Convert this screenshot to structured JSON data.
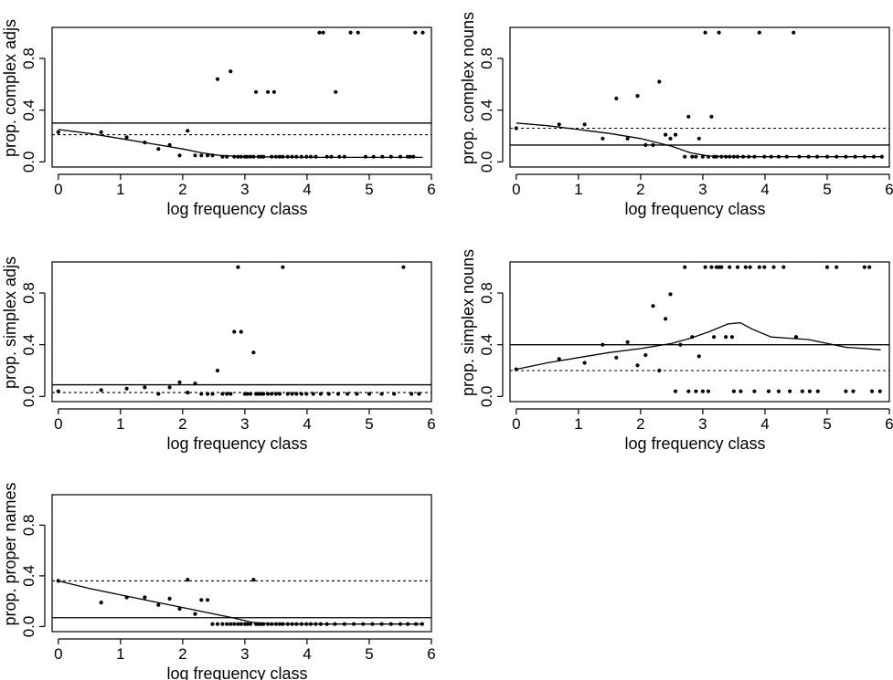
{
  "chart_data": [
    {
      "type": "scatter",
      "ylabel": "prop. complex adjs",
      "xlabel": "log frequency class",
      "xlim": [
        -0.1,
        6
      ],
      "ylim": [
        -0.04,
        1.04
      ],
      "xticks": [
        0,
        1,
        2,
        3,
        4,
        5,
        6
      ],
      "yticks": [
        0.0,
        0.4,
        0.8
      ],
      "ytick_labels": [
        "0.0",
        "0.4",
        "0.8"
      ],
      "hline_solid": 0.3,
      "hline_dashed": 0.21,
      "points": [
        [
          0,
          0.23
        ],
        [
          0.69,
          0.23
        ],
        [
          1.1,
          0.19
        ],
        [
          1.39,
          0.15
        ],
        [
          1.61,
          0.1
        ],
        [
          1.79,
          0.13
        ],
        [
          1.95,
          0.05
        ],
        [
          2.08,
          0.24
        ],
        [
          2.2,
          0.05
        ],
        [
          2.3,
          0.05
        ],
        [
          2.4,
          0.05
        ],
        [
          2.48,
          0.05
        ],
        [
          2.56,
          0.64
        ],
        [
          2.64,
          0.04
        ],
        [
          2.71,
          0.04
        ],
        [
          2.77,
          0.7
        ],
        [
          2.83,
          0.04
        ],
        [
          2.89,
          0.04
        ],
        [
          2.94,
          0.04
        ],
        [
          3.0,
          0.04
        ],
        [
          3.04,
          0.04
        ],
        [
          3.09,
          0.04
        ],
        [
          3.14,
          0.04
        ],
        [
          3.18,
          0.54
        ],
        [
          3.22,
          0.04
        ],
        [
          3.26,
          0.04
        ],
        [
          3.3,
          0.04
        ],
        [
          3.37,
          0.54
        ],
        [
          3.43,
          0.04
        ],
        [
          3.47,
          0.54
        ],
        [
          3.5,
          0.04
        ],
        [
          3.56,
          0.04
        ],
        [
          3.61,
          0.04
        ],
        [
          3.69,
          0.04
        ],
        [
          3.76,
          0.04
        ],
        [
          3.83,
          0.04
        ],
        [
          3.91,
          0.04
        ],
        [
          3.99,
          0.04
        ],
        [
          4.06,
          0.04
        ],
        [
          4.14,
          0.04
        ],
        [
          4.2,
          1.0
        ],
        [
          4.26,
          1.0
        ],
        [
          4.32,
          0.04
        ],
        [
          4.39,
          0.04
        ],
        [
          4.46,
          0.54
        ],
        [
          4.52,
          0.04
        ],
        [
          4.6,
          0.04
        ],
        [
          4.7,
          1.0
        ],
        [
          4.82,
          1.0
        ],
        [
          4.94,
          0.04
        ],
        [
          5.07,
          0.04
        ],
        [
          5.21,
          0.04
        ],
        [
          5.35,
          0.04
        ],
        [
          5.5,
          0.04
        ],
        [
          5.62,
          0.04
        ],
        [
          5.66,
          0.04
        ],
        [
          5.71,
          0.04
        ],
        [
          5.74,
          1.0
        ],
        [
          5.86,
          1.0
        ]
      ],
      "smooth": [
        [
          0,
          0.25
        ],
        [
          0.5,
          0.22
        ],
        [
          1.0,
          0.18
        ],
        [
          1.5,
          0.14
        ],
        [
          2.0,
          0.1
        ],
        [
          2.3,
          0.07
        ],
        [
          2.6,
          0.05
        ],
        [
          3.0,
          0.04
        ],
        [
          4.0,
          0.035
        ],
        [
          5.0,
          0.035
        ],
        [
          5.86,
          0.035
        ]
      ]
    },
    {
      "type": "scatter",
      "ylabel": "prop. complex nouns",
      "xlabel": "log frequency class",
      "xlim": [
        -0.1,
        6
      ],
      "ylim": [
        -0.04,
        1.04
      ],
      "xticks": [
        0,
        1,
        2,
        3,
        4,
        5,
        6
      ],
      "yticks": [
        0.0,
        0.4,
        0.8
      ],
      "ytick_labels": [
        "0.0",
        "0.4",
        "0.8"
      ],
      "hline_solid": 0.13,
      "hline_dashed": 0.26,
      "points": [
        [
          0,
          0.26
        ],
        [
          0.69,
          0.29
        ],
        [
          1.1,
          0.29
        ],
        [
          1.39,
          0.18
        ],
        [
          1.61,
          0.49
        ],
        [
          1.79,
          0.18
        ],
        [
          1.95,
          0.51
        ],
        [
          2.08,
          0.13
        ],
        [
          2.2,
          0.13
        ],
        [
          2.3,
          0.62
        ],
        [
          2.4,
          0.21
        ],
        [
          2.48,
          0.18
        ],
        [
          2.56,
          0.21
        ],
        [
          2.71,
          0.04
        ],
        [
          2.77,
          0.35
        ],
        [
          2.83,
          0.04
        ],
        [
          2.89,
          0.04
        ],
        [
          2.94,
          0.18
        ],
        [
          3.0,
          0.04
        ],
        [
          3.04,
          1.0
        ],
        [
          3.09,
          0.04
        ],
        [
          3.14,
          0.35
        ],
        [
          3.18,
          0.04
        ],
        [
          3.22,
          0.04
        ],
        [
          3.26,
          1.0
        ],
        [
          3.3,
          0.04
        ],
        [
          3.37,
          0.04
        ],
        [
          3.43,
          0.04
        ],
        [
          3.5,
          0.04
        ],
        [
          3.56,
          0.04
        ],
        [
          3.65,
          0.04
        ],
        [
          3.74,
          0.04
        ],
        [
          3.83,
          0.04
        ],
        [
          3.91,
          1.0
        ],
        [
          3.99,
          0.04
        ],
        [
          4.1,
          0.04
        ],
        [
          4.22,
          0.04
        ],
        [
          4.35,
          0.04
        ],
        [
          4.46,
          1.0
        ],
        [
          4.55,
          0.04
        ],
        [
          4.7,
          0.04
        ],
        [
          4.84,
          0.04
        ],
        [
          5.0,
          0.04
        ],
        [
          5.15,
          0.04
        ],
        [
          5.3,
          0.04
        ],
        [
          5.45,
          0.04
        ],
        [
          5.6,
          0.04
        ],
        [
          5.75,
          0.04
        ],
        [
          5.88,
          0.04
        ]
      ],
      "smooth": [
        [
          0,
          0.3
        ],
        [
          0.5,
          0.28
        ],
        [
          1.0,
          0.25
        ],
        [
          1.5,
          0.22
        ],
        [
          2.0,
          0.18
        ],
        [
          2.5,
          0.12
        ],
        [
          2.8,
          0.07
        ],
        [
          3.1,
          0.045
        ],
        [
          3.5,
          0.04
        ],
        [
          4.5,
          0.04
        ],
        [
          5.88,
          0.04
        ]
      ]
    },
    {
      "type": "scatter",
      "ylabel": "prop. simplex adjs",
      "xlabel": "log frequency class",
      "xlim": [
        -0.1,
        6
      ],
      "ylim": [
        -0.04,
        1.04
      ],
      "xticks": [
        0,
        1,
        2,
        3,
        4,
        5,
        6
      ],
      "yticks": [
        0.0,
        0.4,
        0.8
      ],
      "ytick_labels": [
        "0.0",
        "0.4",
        "0.8"
      ],
      "hline_solid": 0.09,
      "hline_dashed": 0.03,
      "points": [
        [
          0,
          0.04
        ],
        [
          0.69,
          0.05
        ],
        [
          1.1,
          0.06
        ],
        [
          1.39,
          0.07
        ],
        [
          1.61,
          0.02
        ],
        [
          1.79,
          0.07
        ],
        [
          1.95,
          0.11
        ],
        [
          2.08,
          0.03
        ],
        [
          2.2,
          0.1
        ],
        [
          2.3,
          0.02
        ],
        [
          2.4,
          0.02
        ],
        [
          2.48,
          0.02
        ],
        [
          2.56,
          0.2
        ],
        [
          2.64,
          0.02
        ],
        [
          2.71,
          0.02
        ],
        [
          2.77,
          0.02
        ],
        [
          2.83,
          0.5
        ],
        [
          2.89,
          1.0
        ],
        [
          2.94,
          0.5
        ],
        [
          3.0,
          0.02
        ],
        [
          3.04,
          0.02
        ],
        [
          3.09,
          0.02
        ],
        [
          3.14,
          0.34
        ],
        [
          3.18,
          0.02
        ],
        [
          3.22,
          0.02
        ],
        [
          3.26,
          0.02
        ],
        [
          3.3,
          0.02
        ],
        [
          3.37,
          0.02
        ],
        [
          3.43,
          0.02
        ],
        [
          3.5,
          0.02
        ],
        [
          3.56,
          0.02
        ],
        [
          3.61,
          1.0
        ],
        [
          3.69,
          0.02
        ],
        [
          3.76,
          0.02
        ],
        [
          3.83,
          0.02
        ],
        [
          3.91,
          0.02
        ],
        [
          3.99,
          0.02
        ],
        [
          4.1,
          0.02
        ],
        [
          4.22,
          0.02
        ],
        [
          4.35,
          0.02
        ],
        [
          4.5,
          0.02
        ],
        [
          4.65,
          0.02
        ],
        [
          4.8,
          0.02
        ],
        [
          5.0,
          0.02
        ],
        [
          5.2,
          0.02
        ],
        [
          5.4,
          0.02
        ],
        [
          5.55,
          1.0
        ],
        [
          5.68,
          0.02
        ],
        [
          5.8,
          0.02
        ]
      ],
      "smooth": []
    },
    {
      "type": "scatter",
      "ylabel": "prop. simplex nouns",
      "xlabel": "log frequency class",
      "xlim": [
        -0.1,
        6
      ],
      "ylim": [
        -0.04,
        1.04
      ],
      "xticks": [
        0,
        1,
        2,
        3,
        4,
        5,
        6
      ],
      "yticks": [
        0.0,
        0.4,
        0.8
      ],
      "ytick_labels": [
        "0.0",
        "0.4",
        "0.8"
      ],
      "hline_solid": 0.4,
      "hline_dashed": 0.2,
      "points": [
        [
          0,
          0.21
        ],
        [
          0.69,
          0.29
        ],
        [
          1.1,
          0.26
        ],
        [
          1.39,
          0.4
        ],
        [
          1.61,
          0.3
        ],
        [
          1.79,
          0.42
        ],
        [
          1.95,
          0.24
        ],
        [
          2.08,
          0.32
        ],
        [
          2.2,
          0.7
        ],
        [
          2.3,
          0.2
        ],
        [
          2.4,
          0.6
        ],
        [
          2.48,
          0.79
        ],
        [
          2.56,
          0.04
        ],
        [
          2.64,
          0.4
        ],
        [
          2.71,
          1.0
        ],
        [
          2.77,
          0.04
        ],
        [
          2.83,
          0.46
        ],
        [
          2.89,
          0.04
        ],
        [
          2.94,
          0.31
        ],
        [
          3.0,
          0.04
        ],
        [
          3.04,
          1.0
        ],
        [
          3.09,
          0.04
        ],
        [
          3.14,
          1.0
        ],
        [
          3.18,
          0.46
        ],
        [
          3.22,
          1.0
        ],
        [
          3.26,
          1.0
        ],
        [
          3.3,
          1.0
        ],
        [
          3.37,
          0.46
        ],
        [
          3.43,
          1.0
        ],
        [
          3.47,
          0.46
        ],
        [
          3.5,
          0.04
        ],
        [
          3.56,
          1.0
        ],
        [
          3.61,
          0.04
        ],
        [
          3.69,
          1.0
        ],
        [
          3.76,
          1.0
        ],
        [
          3.83,
          0.04
        ],
        [
          3.91,
          1.0
        ],
        [
          3.99,
          1.0
        ],
        [
          4.06,
          0.04
        ],
        [
          4.14,
          1.0
        ],
        [
          4.22,
          0.04
        ],
        [
          4.3,
          1.0
        ],
        [
          4.4,
          0.04
        ],
        [
          4.5,
          0.46
        ],
        [
          4.6,
          0.04
        ],
        [
          4.72,
          0.04
        ],
        [
          4.85,
          0.04
        ],
        [
          5.0,
          1.0
        ],
        [
          5.15,
          1.0
        ],
        [
          5.3,
          0.04
        ],
        [
          5.42,
          0.04
        ],
        [
          5.6,
          1.0
        ],
        [
          5.68,
          1.0
        ],
        [
          5.72,
          0.04
        ],
        [
          5.85,
          0.04
        ]
      ],
      "smooth": [
        [
          0,
          0.21
        ],
        [
          0.5,
          0.26
        ],
        [
          1.0,
          0.3
        ],
        [
          1.5,
          0.34
        ],
        [
          2.0,
          0.37
        ],
        [
          2.5,
          0.41
        ],
        [
          2.8,
          0.45
        ],
        [
          3.1,
          0.5
        ],
        [
          3.4,
          0.56
        ],
        [
          3.6,
          0.57
        ],
        [
          3.8,
          0.52
        ],
        [
          4.1,
          0.46
        ],
        [
          4.4,
          0.45
        ],
        [
          4.7,
          0.44
        ],
        [
          5.0,
          0.41
        ],
        [
          5.3,
          0.38
        ],
        [
          5.6,
          0.37
        ],
        [
          5.86,
          0.36
        ]
      ]
    },
    {
      "type": "scatter",
      "ylabel": "prop. proper names",
      "xlabel": "log frequency class",
      "xlim": [
        -0.1,
        6
      ],
      "ylim": [
        -0.04,
        1.04
      ],
      "xticks": [
        0,
        1,
        2,
        3,
        4,
        5,
        6
      ],
      "yticks": [
        0.0,
        0.4,
        0.8
      ],
      "ytick_labels": [
        "0.0",
        "0.4",
        "0.8"
      ],
      "hline_solid": 0.07,
      "hline_dashed": 0.36,
      "points": [
        [
          0,
          0.36
        ],
        [
          0.69,
          0.19
        ],
        [
          1.1,
          0.23
        ],
        [
          1.39,
          0.23
        ],
        [
          1.61,
          0.17
        ],
        [
          1.79,
          0.22
        ],
        [
          1.95,
          0.14
        ],
        [
          2.08,
          0.37
        ],
        [
          2.2,
          0.1
        ],
        [
          2.3,
          0.21
        ],
        [
          2.4,
          0.21
        ],
        [
          2.48,
          0.02
        ],
        [
          2.56,
          0.02
        ],
        [
          2.64,
          0.02
        ],
        [
          2.71,
          0.02
        ],
        [
          2.77,
          0.02
        ],
        [
          2.83,
          0.02
        ],
        [
          2.89,
          0.02
        ],
        [
          2.94,
          0.02
        ],
        [
          3.0,
          0.02
        ],
        [
          3.04,
          0.02
        ],
        [
          3.09,
          0.02
        ],
        [
          3.14,
          0.37
        ],
        [
          3.18,
          0.02
        ],
        [
          3.22,
          0.02
        ],
        [
          3.26,
          0.02
        ],
        [
          3.3,
          0.02
        ],
        [
          3.37,
          0.02
        ],
        [
          3.43,
          0.02
        ],
        [
          3.5,
          0.02
        ],
        [
          3.56,
          0.02
        ],
        [
          3.61,
          0.02
        ],
        [
          3.69,
          0.02
        ],
        [
          3.76,
          0.02
        ],
        [
          3.83,
          0.02
        ],
        [
          3.91,
          0.02
        ],
        [
          3.99,
          0.02
        ],
        [
          4.06,
          0.02
        ],
        [
          4.14,
          0.02
        ],
        [
          4.22,
          0.02
        ],
        [
          4.32,
          0.02
        ],
        [
          4.45,
          0.02
        ],
        [
          4.6,
          0.02
        ],
        [
          4.75,
          0.02
        ],
        [
          4.9,
          0.02
        ],
        [
          5.05,
          0.02
        ],
        [
          5.2,
          0.02
        ],
        [
          5.35,
          0.02
        ],
        [
          5.5,
          0.02
        ],
        [
          5.62,
          0.02
        ],
        [
          5.75,
          0.02
        ],
        [
          5.85,
          0.02
        ]
      ],
      "smooth": [
        [
          0,
          0.36
        ],
        [
          0.5,
          0.3
        ],
        [
          1.0,
          0.25
        ],
        [
          1.5,
          0.2
        ],
        [
          2.0,
          0.15
        ],
        [
          2.5,
          0.1
        ],
        [
          2.8,
          0.07
        ],
        [
          3.1,
          0.035
        ],
        [
          3.4,
          0.02
        ],
        [
          4.0,
          0.02
        ],
        [
          5.0,
          0.02
        ],
        [
          5.85,
          0.02
        ]
      ]
    }
  ]
}
